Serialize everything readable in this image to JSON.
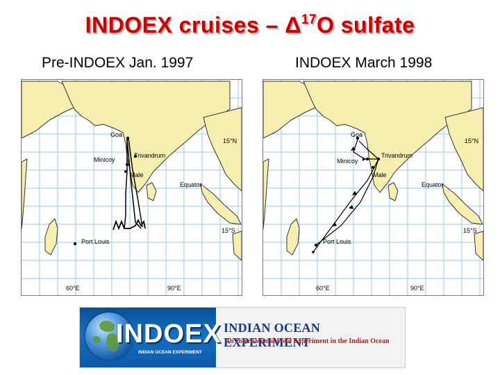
{
  "slide": {
    "title_main": "INDOEX cruises – ",
    "title_delta": "Δ",
    "title_sup": "17",
    "title_tail": "O sulfate"
  },
  "maps": [
    {
      "heading": "Pre-INDOEX Jan. 1997",
      "labels": {
        "goa": "Goa",
        "trivandrum": "Trivandrum",
        "minicoy": "Minicoy",
        "male": "Male",
        "equator": "Equator",
        "port_louis": "Port Louis",
        "lat_north": "15°N",
        "lat_south": "15°S",
        "lon_west": "60°E",
        "lon_east": "90°E"
      }
    },
    {
      "heading": "INDOEX March 1998",
      "labels": {
        "goa": "Goa",
        "trivandrum": "Trivandrum",
        "minicoy": "Minicoy",
        "male": "Male",
        "equator": "Equator",
        "port_louis": "Port Louis",
        "lat_north": "15°N",
        "lat_south": "15°S",
        "lon_west": "60°E",
        "lon_east": "90°E"
      }
    }
  ],
  "banner": {
    "logo_word": "INDOEX",
    "logo_sub": "INDIAN OCEAN EXPERIMENT",
    "title": "INDIAN OCEAN EXPERIMENT",
    "tagline": "An International Field Experiment in the Indian Ocean"
  },
  "colors": {
    "title": "#cc0000",
    "land": "#f7efb0",
    "grid": "#9cc7e3",
    "track": "#000000",
    "banner_blue": "#17368c",
    "banner_red": "#c31a12"
  }
}
